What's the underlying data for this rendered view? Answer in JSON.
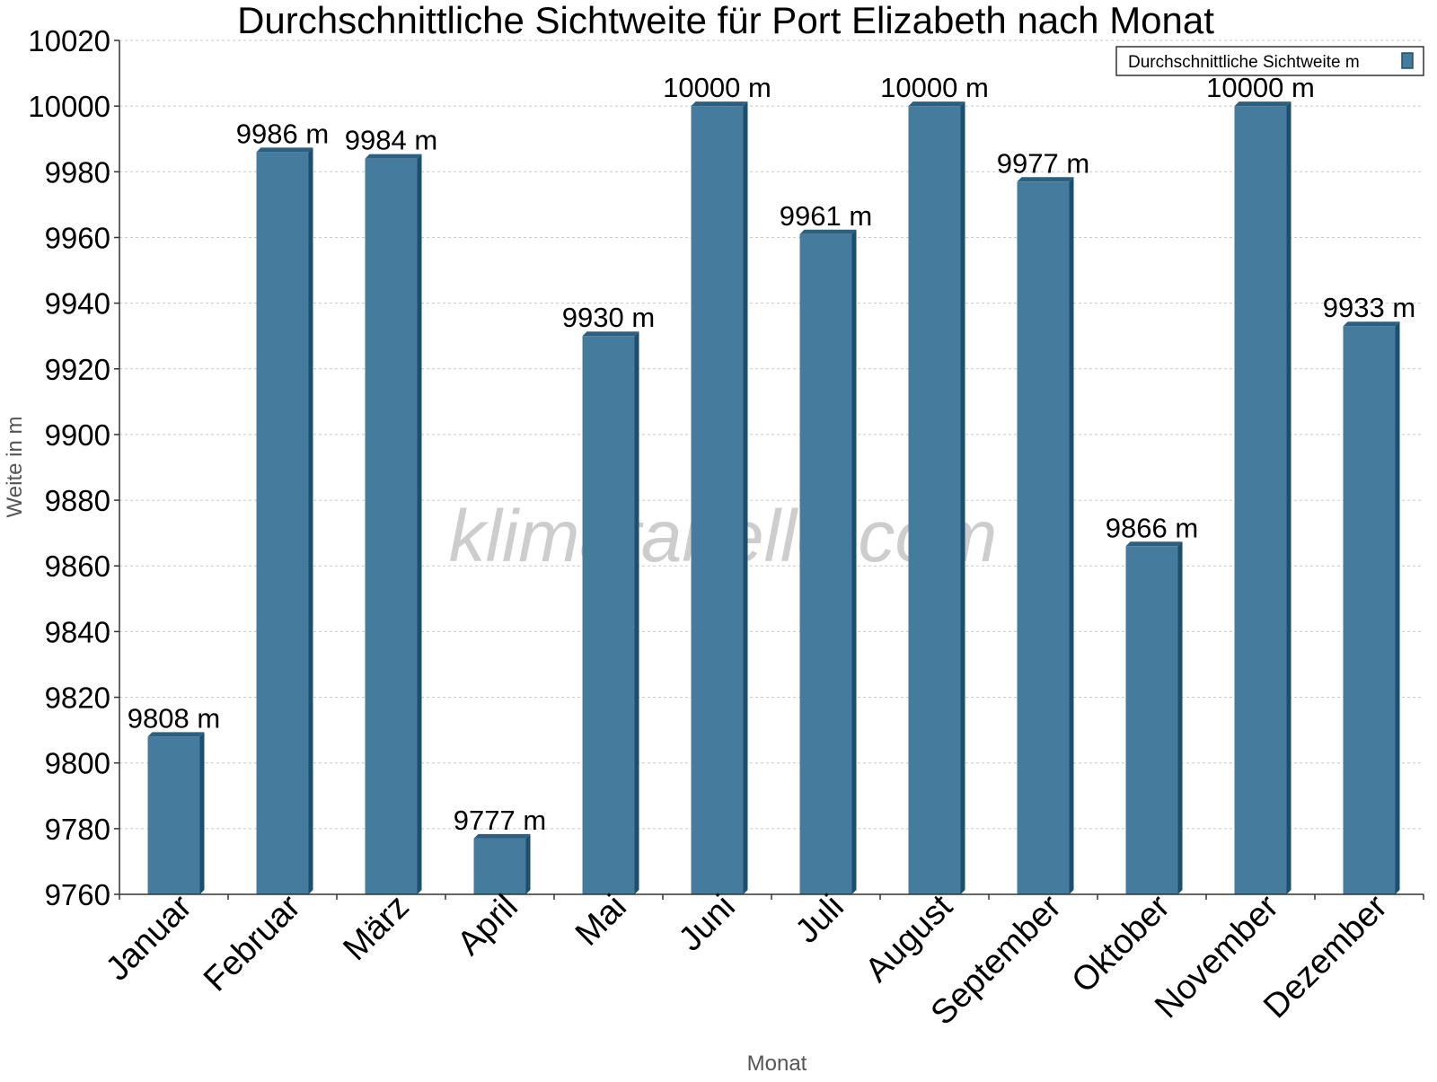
{
  "chart_data": {
    "type": "bar",
    "title": "Durchschnittliche Sichtweite für Port Elizabeth nach Monat",
    "xlabel": "Monat",
    "ylabel": "Weite in m",
    "ylim": [
      9760,
      10020
    ],
    "yticks": [
      9760,
      9780,
      9800,
      9820,
      9840,
      9860,
      9880,
      9900,
      9920,
      9940,
      9960,
      9980,
      10000,
      10020
    ],
    "grid": true,
    "legend_position": "top-right",
    "value_suffix": " m",
    "categories": [
      "Januar",
      "Februar",
      "März",
      "April",
      "Mai",
      "Juni",
      "Juli",
      "August",
      "September",
      "Oktober",
      "November",
      "Dezember"
    ],
    "series": [
      {
        "name": "Durchschnittliche Sichtweite m",
        "values": [
          9808,
          9986,
          9984,
          9777,
          9930,
          10000,
          9961,
          10000,
          9977,
          9866,
          10000,
          9933
        ]
      }
    ]
  },
  "colors": {
    "bar_front": "#457b9d",
    "bar_side": "#1d4e6e",
    "bar_top": "#2c5f80",
    "grid": "#c8c8c8",
    "axis": "#333333"
  },
  "watermark": "klimatabelle.com"
}
